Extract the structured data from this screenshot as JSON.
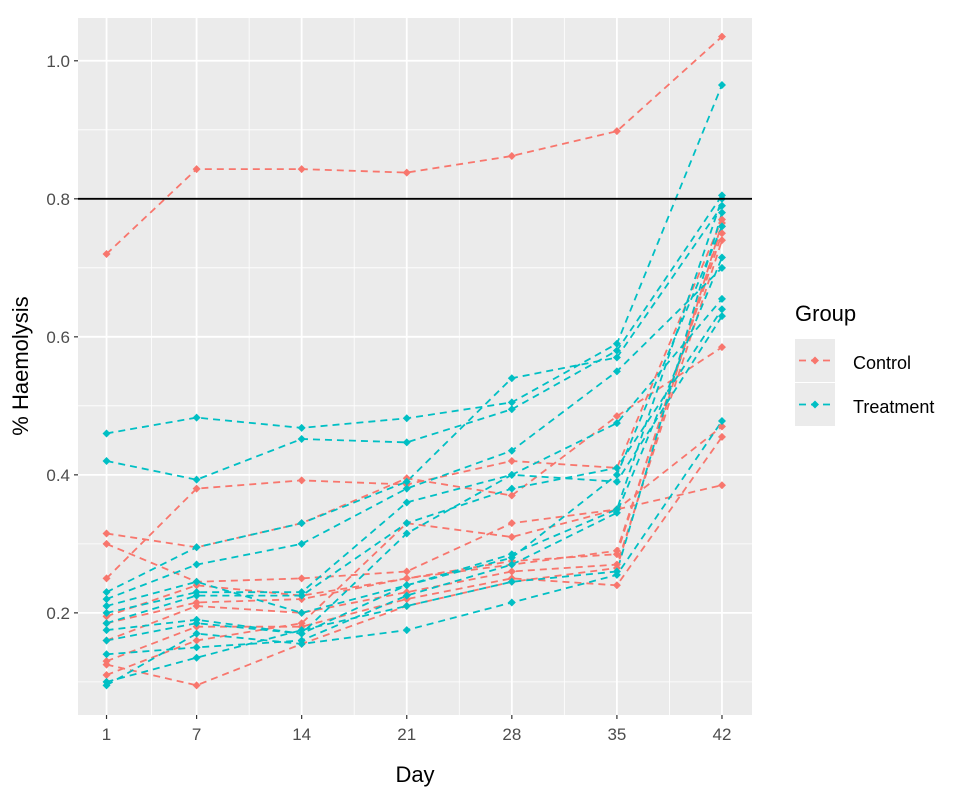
{
  "chart_data": {
    "type": "line",
    "title": "",
    "xlabel": "Day",
    "ylabel": "% Haemolysis",
    "x": [
      1,
      7,
      14,
      21,
      28,
      35,
      42
    ],
    "x_tick_labels": [
      "1",
      "7",
      "14",
      "21",
      "28",
      "35",
      "42"
    ],
    "y_ticks": [
      0.2,
      0.4,
      0.6,
      0.8,
      1.0
    ],
    "y_tick_labels": [
      "0.2",
      "0.4",
      "0.6",
      "0.8",
      "1.0"
    ],
    "ylim": [
      0.052,
      1.062
    ],
    "xlim": [
      -0.9,
      44.0
    ],
    "grid": true,
    "reference_line": {
      "y": 0.8,
      "color": "#000000"
    },
    "line_style": "dashed",
    "legend": {
      "title": "Group",
      "placement": "right",
      "entries": [
        "Control",
        "Treatment"
      ]
    },
    "colors": {
      "Control": "#F8766D",
      "Treatment": "#00BFC4",
      "panel": "#EBEBEB",
      "grid": "#FFFFFF"
    },
    "series": [
      {
        "group": "Control",
        "values": [
          0.72,
          0.843,
          0.843,
          0.838,
          0.862,
          0.898,
          1.035
        ]
      },
      {
        "group": "Control",
        "values": [
          0.25,
          0.38,
          0.392,
          0.386,
          0.42,
          0.41,
          0.77
        ]
      },
      {
        "group": "Control",
        "values": [
          0.315,
          0.295,
          0.33,
          0.395,
          0.37,
          0.485,
          0.585
        ]
      },
      {
        "group": "Control",
        "values": [
          0.3,
          0.245,
          0.25,
          0.26,
          0.33,
          0.35,
          0.47
        ]
      },
      {
        "group": "Control",
        "values": [
          0.195,
          0.24,
          0.225,
          0.25,
          0.27,
          0.29,
          0.75
        ]
      },
      {
        "group": "Control",
        "values": [
          0.185,
          0.215,
          0.22,
          0.25,
          0.275,
          0.285,
          0.76
        ]
      },
      {
        "group": "Control",
        "values": [
          0.16,
          0.21,
          0.2,
          0.23,
          0.26,
          0.27,
          0.74
        ]
      },
      {
        "group": "Control",
        "values": [
          0.13,
          0.18,
          0.18,
          0.22,
          0.25,
          0.24,
          0.455
        ]
      },
      {
        "group": "Control",
        "values": [
          0.11,
          0.16,
          0.185,
          0.33,
          0.31,
          0.35,
          0.385
        ]
      },
      {
        "group": "Control",
        "values": [
          0.125,
          0.095,
          0.155,
          0.21,
          0.245,
          0.265,
          0.765
        ]
      },
      {
        "group": "Treatment",
        "values": [
          0.46,
          0.483,
          0.468,
          0.482,
          0.505,
          0.59,
          0.965
        ]
      },
      {
        "group": "Treatment",
        "values": [
          0.42,
          0.393,
          0.452,
          0.447,
          0.495,
          0.58,
          0.805
        ]
      },
      {
        "group": "Treatment",
        "values": [
          0.23,
          0.295,
          0.33,
          0.39,
          0.54,
          0.57,
          0.79
        ]
      },
      {
        "group": "Treatment",
        "values": [
          0.22,
          0.27,
          0.3,
          0.38,
          0.435,
          0.55,
          0.7
        ]
      },
      {
        "group": "Treatment",
        "values": [
          0.2,
          0.23,
          0.23,
          0.36,
          0.4,
          0.475,
          0.655
        ]
      },
      {
        "group": "Treatment",
        "values": [
          0.185,
          0.225,
          0.225,
          0.33,
          0.38,
          0.41,
          0.64
        ]
      },
      {
        "group": "Treatment",
        "values": [
          0.175,
          0.19,
          0.17,
          0.315,
          0.4,
          0.39,
          0.63
        ]
      },
      {
        "group": "Treatment",
        "values": [
          0.16,
          0.185,
          0.17,
          0.24,
          0.285,
          0.35,
          0.8
        ]
      },
      {
        "group": "Treatment",
        "values": [
          0.14,
          0.15,
          0.16,
          0.225,
          0.27,
          0.345,
          0.715
        ]
      },
      {
        "group": "Treatment",
        "values": [
          0.1,
          0.135,
          0.175,
          0.21,
          0.245,
          0.26,
          0.78
        ]
      },
      {
        "group": "Treatment",
        "values": [
          0.095,
          0.17,
          0.155,
          0.175,
          0.215,
          0.255,
          0.478
        ]
      },
      {
        "group": "Treatment",
        "values": [
          0.21,
          0.245,
          0.2,
          0.24,
          0.28,
          0.4,
          0.76
        ]
      }
    ]
  }
}
